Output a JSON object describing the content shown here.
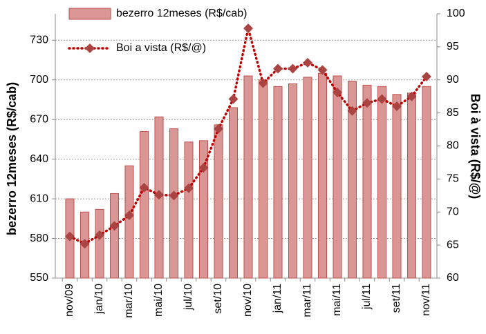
{
  "chart_data": {
    "type": "bar-line",
    "categories": [
      "nov/09",
      null,
      "jan/10",
      null,
      "mar/10",
      null,
      "mai/10",
      null,
      "jul/10",
      null,
      "set/10",
      null,
      "nov/10",
      null,
      "jan/11",
      null,
      "mar/11",
      null,
      "mai/11",
      null,
      "jul/11",
      null,
      "set/11",
      null,
      "nov/11"
    ],
    "series": [
      {
        "name": "bezerro 12meses (R$/cab)",
        "type": "bar",
        "color": "#d99694",
        "values": [
          610,
          600,
          602,
          614,
          635,
          661,
          672,
          663,
          653,
          654,
          666,
          679,
          703,
          700,
          695,
          697,
          702,
          705,
          703,
          699,
          696,
          695,
          689,
          690,
          695
        ]
      },
      {
        "name": "Boi a vista (R$/@)",
        "type": "line",
        "axis": "y2",
        "color": "#c00000",
        "values": [
          66.3,
          65.2,
          66.5,
          67.9,
          69.5,
          73.7,
          72.6,
          72.5,
          73.6,
          76.7,
          82.6,
          87.1,
          97.8,
          89.5,
          91.7,
          91.7,
          92.6,
          91.5,
          88.1,
          85.3,
          86.5,
          87.1,
          86.0,
          87.5,
          90.5
        ]
      }
    ],
    "ylabel": "bezerro 12meses (R$/cab)",
    "y2label": "Boi à vista (R$/@)",
    "ylim": [
      550,
      750
    ],
    "yticks": [
      550,
      580,
      610,
      640,
      670,
      700,
      730
    ],
    "y2lim": [
      60,
      100
    ],
    "y2ticks": [
      60,
      65,
      70,
      75,
      80,
      85,
      90,
      95,
      100
    ],
    "grid": true
  }
}
